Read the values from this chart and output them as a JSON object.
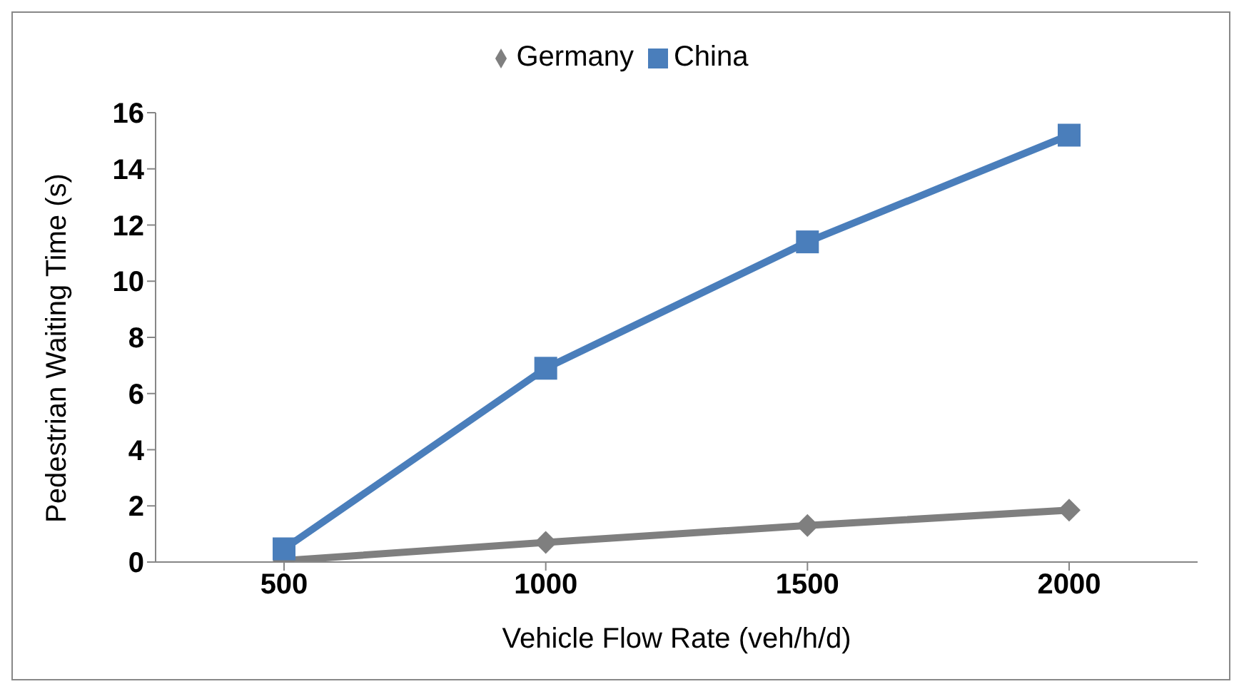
{
  "chart_data": {
    "type": "line",
    "xlabel": "Vehicle Flow Rate (veh/h/d)",
    "ylabel": "Pedestrian Waiting Time (s)",
    "categories": [
      "500",
      "1000",
      "1500",
      "2000"
    ],
    "series": [
      {
        "name": "Germany",
        "color": "#7f7f7f",
        "marker": "diamond",
        "values": [
          0.05,
          0.7,
          1.3,
          1.85
        ]
      },
      {
        "name": "China",
        "color": "#4a7ebb",
        "marker": "square",
        "values": [
          0.47,
          6.9,
          11.4,
          15.2
        ]
      }
    ],
    "ylim": [
      0,
      16
    ],
    "yticks": [
      0,
      2,
      4,
      6,
      8,
      10,
      12,
      14,
      16
    ],
    "grid": false,
    "legend": "top",
    "line_style": "solid"
  }
}
